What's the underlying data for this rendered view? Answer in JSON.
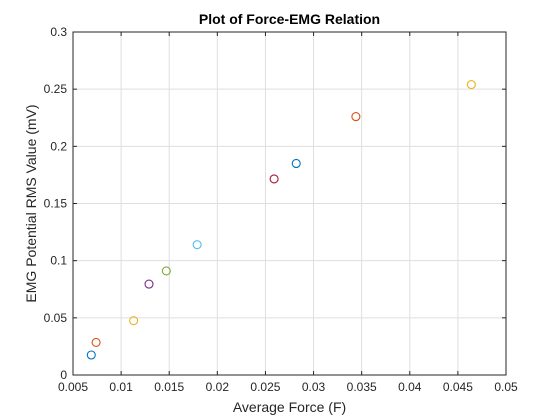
{
  "chart_data": {
    "type": "scatter",
    "title": "Plot of Force-EMG Relation",
    "xlabel": "Average Force (F)",
    "ylabel": "EMG Potential RMS Value (mV)",
    "xlim": [
      0.005,
      0.05
    ],
    "ylim": [
      0,
      0.3
    ],
    "x_ticks": [
      "0.005",
      "0.01",
      "0.015",
      "0.02",
      "0.025",
      "0.03",
      "0.035",
      "0.04",
      "0.045",
      "0.05"
    ],
    "y_ticks": [
      "0",
      "0.05",
      "0.1",
      "0.15",
      "0.2",
      "0.25",
      "0.3"
    ],
    "grid": true,
    "marker": "open-circle",
    "points": [
      {
        "x": 0.0069,
        "y": 0.0175,
        "color": "#0072BD"
      },
      {
        "x": 0.0074,
        "y": 0.0285,
        "color": "#D95319"
      },
      {
        "x": 0.0113,
        "y": 0.0475,
        "color": "#EDB120"
      },
      {
        "x": 0.0129,
        "y": 0.0795,
        "color": "#7E2F8E"
      },
      {
        "x": 0.0147,
        "y": 0.091,
        "color": "#77AC30"
      },
      {
        "x": 0.0179,
        "y": 0.114,
        "color": "#4DBEEE"
      },
      {
        "x": 0.0259,
        "y": 0.1715,
        "color": "#A2142F"
      },
      {
        "x": 0.0282,
        "y": 0.185,
        "color": "#0072BD"
      },
      {
        "x": 0.0344,
        "y": 0.226,
        "color": "#D95319"
      },
      {
        "x": 0.0464,
        "y": 0.254,
        "color": "#EDB120"
      }
    ]
  }
}
